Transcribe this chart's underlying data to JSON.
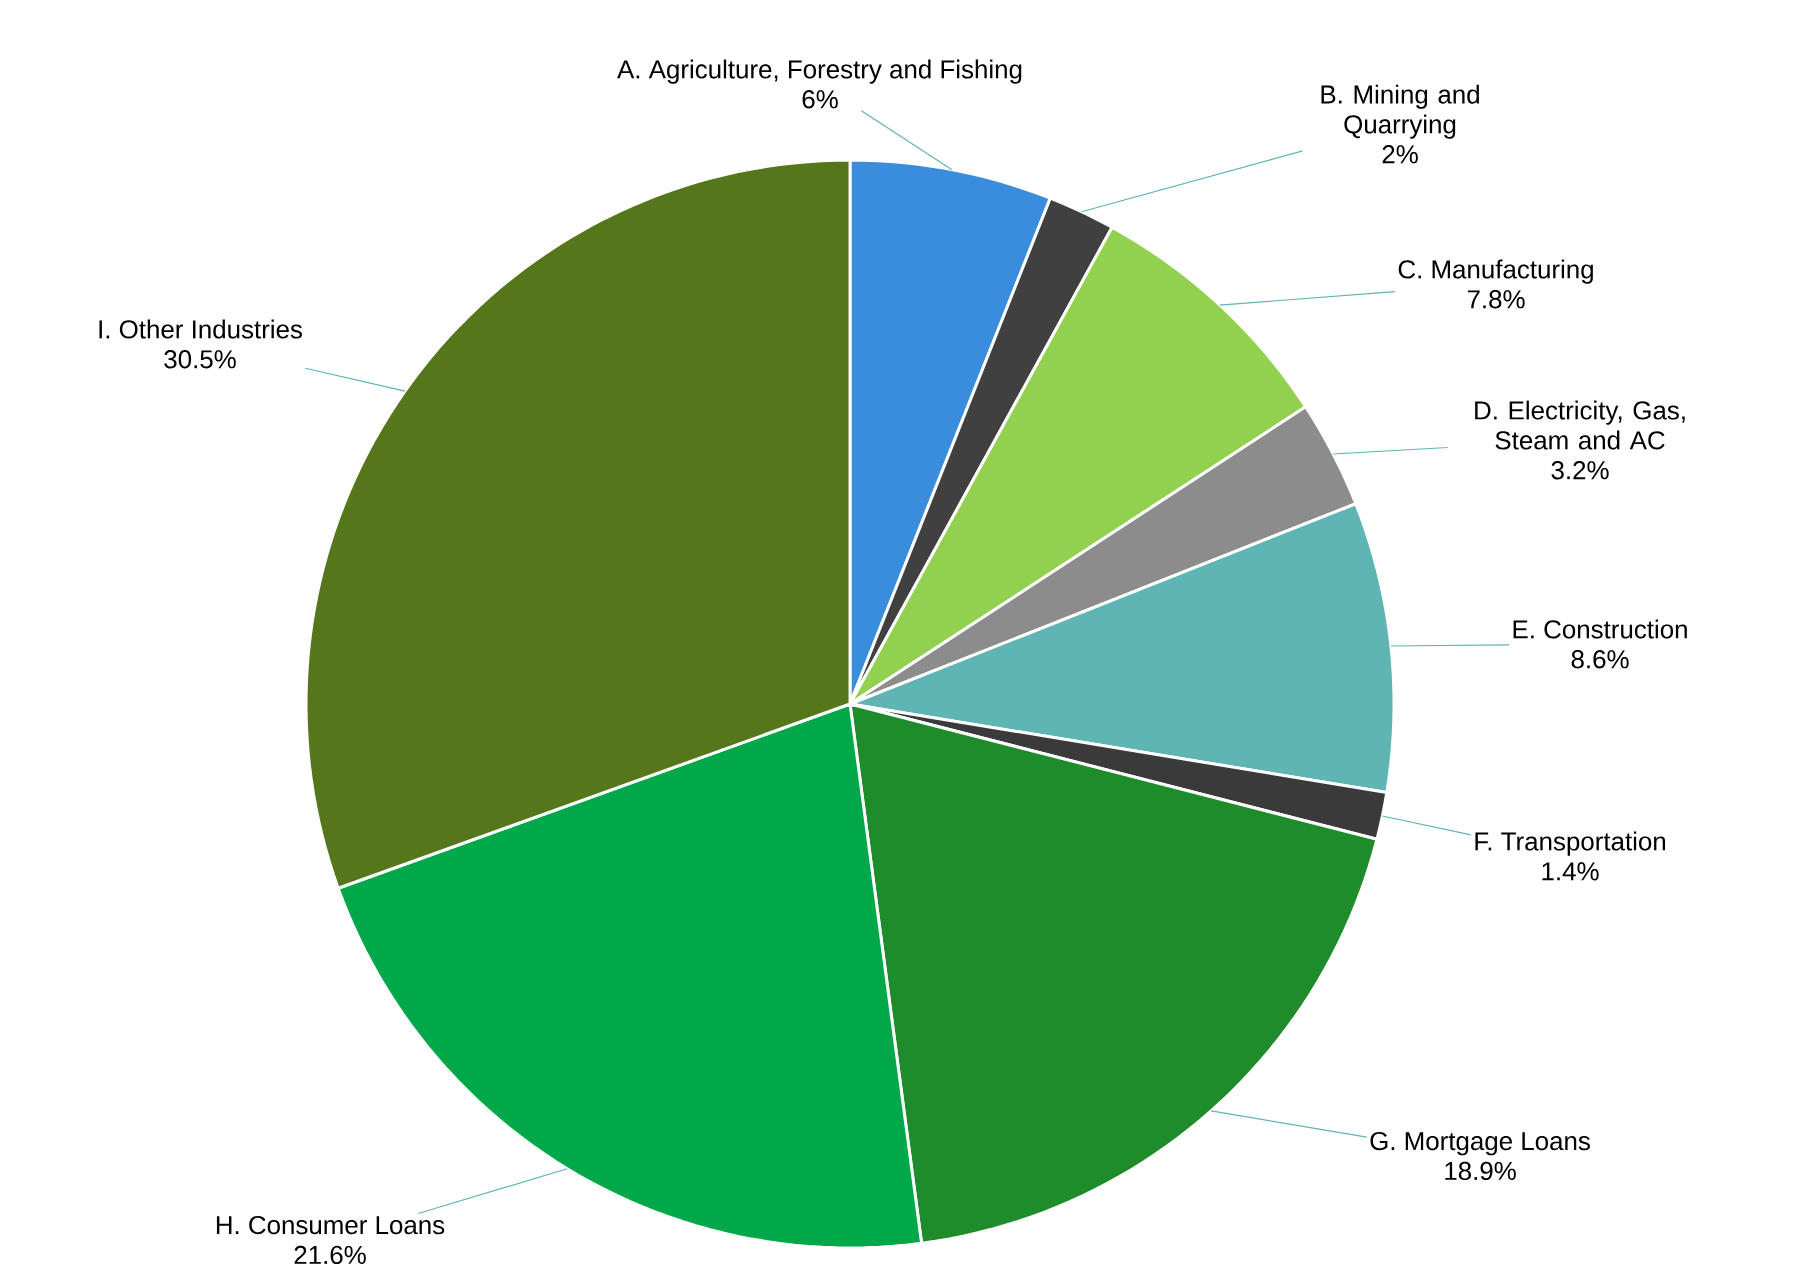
{
  "chart_data": {
    "type": "pie",
    "categories": [
      "A. Agriculture, Forestry and Fishing",
      "B. Mining and Quarrying",
      "C. Manufacturing",
      "D. Electricity, Gas, Steam and AC",
      "E. Construction",
      "F. Transportation",
      "G. Mortgage Loans",
      "H. Consumer Loans",
      "I. Other Industries"
    ],
    "values": [
      6,
      2,
      7.8,
      3.2,
      8.6,
      1.4,
      18.9,
      21.6,
      30.5
    ],
    "value_labels": [
      "6%",
      "2%",
      "7.8%",
      "3.2%",
      "8.6%",
      "1.4%",
      "18.9%",
      "21.6%",
      "30.5%"
    ],
    "colors": [
      "#3a8ddc",
      "#404040",
      "#92d050",
      "#8c8c8c",
      "#5fb4b4",
      "#3a3a3a",
      "#1e8c2a",
      "#00a84a",
      "#55761a"
    ]
  }
}
